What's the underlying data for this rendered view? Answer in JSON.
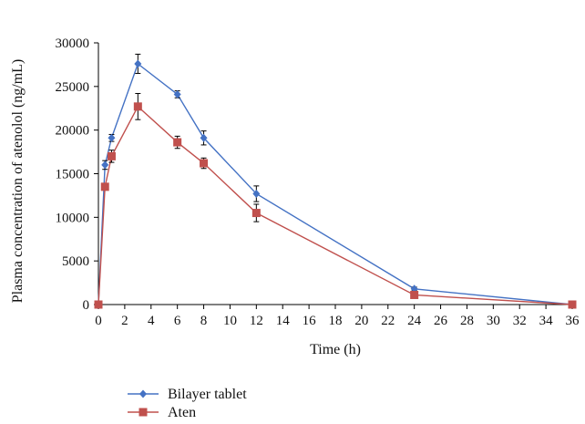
{
  "chart_data": {
    "type": "line",
    "xlabel": "Time (h)",
    "ylabel": "Plasma concentration of atenolol (ng/mL)",
    "xlim": [
      0,
      36
    ],
    "ylim": [
      0,
      30000
    ],
    "xticks": [
      0,
      2,
      4,
      6,
      8,
      10,
      12,
      14,
      16,
      18,
      20,
      22,
      24,
      26,
      28,
      30,
      32,
      34,
      36
    ],
    "yticks": [
      0,
      5000,
      10000,
      15000,
      20000,
      25000,
      30000
    ],
    "grid": false,
    "legend_position": "bottom-left",
    "series": [
      {
        "name": "Bilayer tablet",
        "color": "#4472c4",
        "marker": "diamond",
        "x": [
          0,
          0.5,
          1,
          3,
          6,
          8,
          12,
          24,
          36
        ],
        "y": [
          0,
          16000,
          19100,
          27600,
          24100,
          19100,
          12700,
          1800,
          0
        ],
        "err": [
          0,
          500,
          400,
          1100,
          400,
          800,
          900,
          200,
          0
        ]
      },
      {
        "name": "Aten",
        "color": "#c0504d",
        "marker": "square",
        "x": [
          0,
          0.5,
          1,
          3,
          6,
          8,
          12,
          24,
          36
        ],
        "y": [
          0,
          13500,
          17000,
          22700,
          18600,
          16200,
          10500,
          1100,
          0
        ],
        "err": [
          0,
          300,
          700,
          1500,
          700,
          600,
          1000,
          200,
          0
        ]
      }
    ]
  }
}
